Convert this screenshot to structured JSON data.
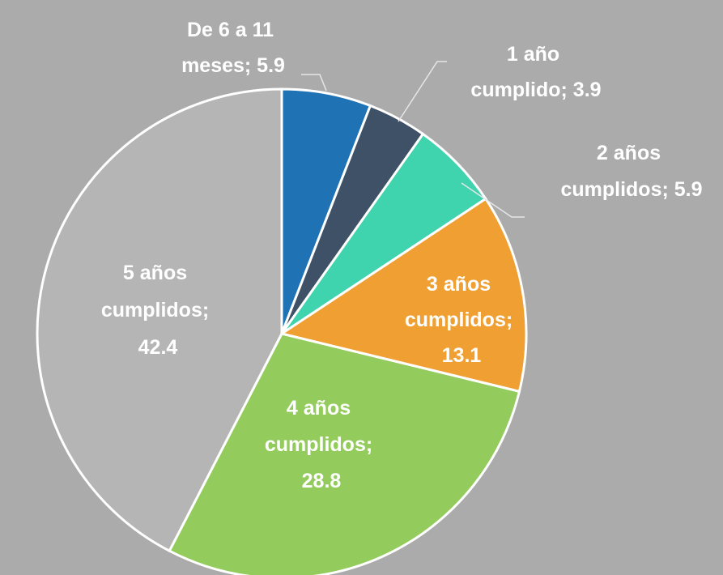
{
  "chart_data": {
    "type": "pie",
    "categories": [
      "De 6 a 11 meses",
      "1 año cumplido",
      "2 años cumplidos",
      "3 años cumplidos",
      "4 años cumplidos",
      "5 años cumplidos"
    ],
    "values": [
      5.9,
      3.9,
      5.9,
      13.1,
      28.8,
      42.4
    ],
    "value_labels": [
      "De 6 a 11 meses; 5.9",
      "1 año cumplido; 3.9",
      "2 años cumplidos; 5.9",
      "3 años cumplidos; 13.1",
      "4 años cumplidos; 28.8",
      "5 años cumplidos; 42.4"
    ],
    "colors": [
      "#1f72b4",
      "#3f5166",
      "#3fd3ae",
      "#f0a032",
      "#93cb5d",
      "#b5b5b5"
    ]
  }
}
